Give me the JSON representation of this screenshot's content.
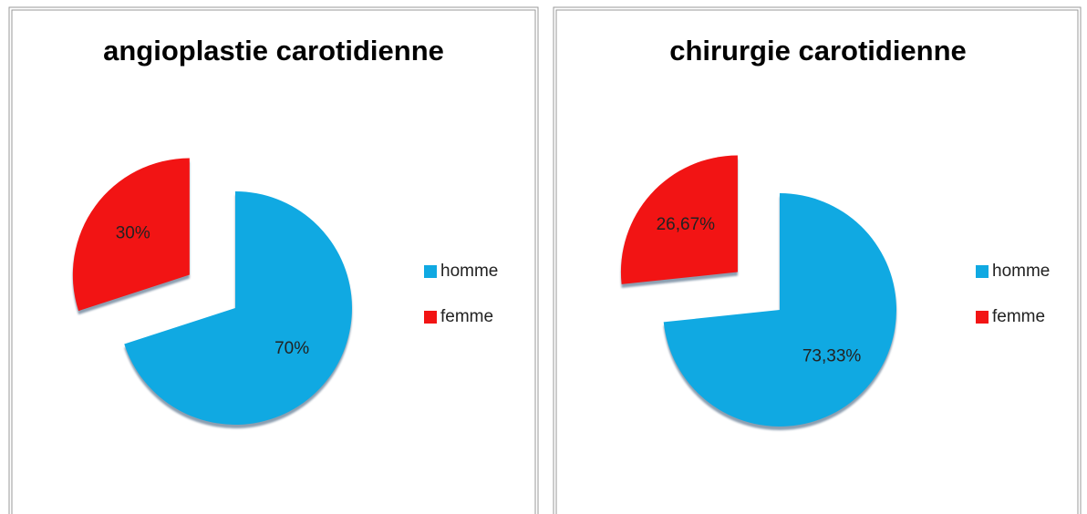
{
  "chart_data": [
    {
      "type": "pie",
      "title": "angioplastie carotidienne",
      "categories": [
        "homme",
        "femme"
      ],
      "values": [
        70,
        30
      ],
      "value_labels": [
        "70%",
        "30%"
      ],
      "colors": [
        "#10a9e2",
        "#f21414"
      ],
      "legend": "right",
      "exploded": [
        false,
        true
      ]
    },
    {
      "type": "pie",
      "title": "chirurgie carotidienne",
      "categories": [
        "homme",
        "femme"
      ],
      "values": [
        73.33,
        26.67
      ],
      "value_labels": [
        "73,33%",
        "26,67%"
      ],
      "colors": [
        "#10a9e2",
        "#f21414"
      ],
      "legend": "right",
      "exploded": [
        false,
        true
      ]
    }
  ]
}
